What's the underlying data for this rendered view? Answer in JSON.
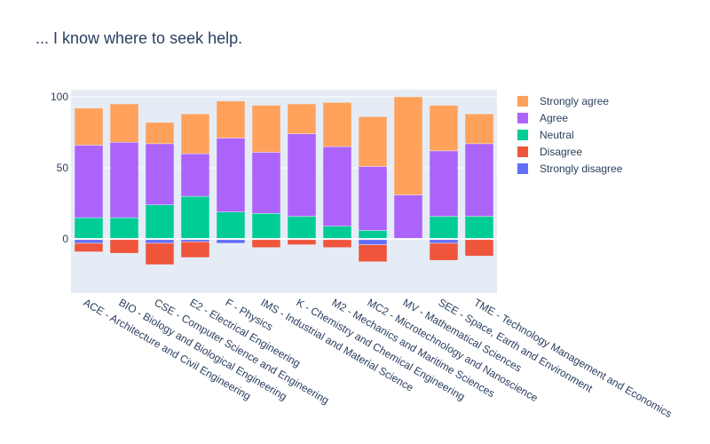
{
  "chart_data": {
    "type": "bar",
    "title": "... I know where to seek help.",
    "barmode": "relative",
    "categories": [
      "ACE - Architecture and Civil Engineering",
      "BIO - Biology and Biological Engineering",
      "CSE - Computer Science and Engineering",
      "E2 - Electrical Engineering",
      "F - Physics",
      "IMS - Industrial and Material Science",
      "K - Chemistry and Chemical Engineering",
      "M2 - Mechanics and Maritime Sciences",
      "MC2 - Microtechnology and Nanoscience",
      "MV - Mathematical Sciences",
      "SEE - Space, Earth and Environment",
      "TME - Technology Management and Economics"
    ],
    "series": [
      {
        "name": "Strongly disagree",
        "color": "#636efa",
        "values": [
          -3,
          0,
          -3,
          -2,
          -3,
          0,
          0,
          0,
          -4,
          0,
          -3,
          0
        ]
      },
      {
        "name": "Disagree",
        "color": "#EF553B",
        "values": [
          -6,
          -10,
          -15,
          -11,
          0,
          -6,
          -4,
          -6,
          -12,
          0,
          -12,
          -12
        ]
      },
      {
        "name": "Neutral",
        "color": "#00cc96",
        "values": [
          15,
          15,
          24,
          30,
          19,
          18,
          16,
          9,
          6,
          0,
          16,
          16
        ]
      },
      {
        "name": "Agree",
        "color": "#ab63fa",
        "values": [
          51,
          53,
          43,
          30,
          52,
          43,
          58,
          56,
          45,
          31,
          46,
          51
        ]
      },
      {
        "name": "Strongly agree",
        "color": "#FFA15A",
        "values": [
          26,
          27,
          15,
          28,
          26,
          33,
          21,
          31,
          35,
          69,
          32,
          21
        ]
      }
    ],
    "legend_order": [
      "Strongly agree",
      "Agree",
      "Neutral",
      "Disagree",
      "Strongly disagree"
    ],
    "yaxis": {
      "range": [
        -38,
        105
      ],
      "ticks": [
        0,
        50,
        100
      ]
    },
    "legend_position": "right",
    "grid": true
  }
}
